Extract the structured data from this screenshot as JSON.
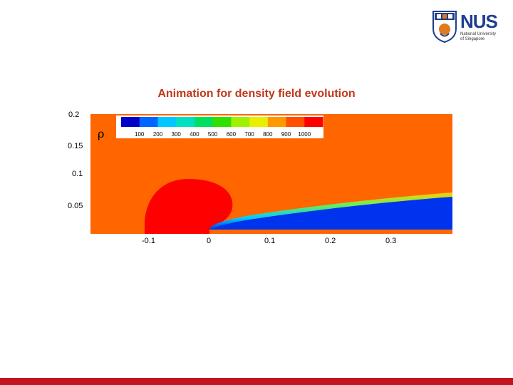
{
  "slide": {
    "title": "Animation for density field evolution"
  },
  "logo": {
    "wordmark": "NUS",
    "subtitle_line1": "National University",
    "subtitle_line2": "of Singapore",
    "primary_color": "#1f3f8c",
    "accent_color": "#e07a1f"
  },
  "colors": {
    "title": "#c0391b",
    "background_field": "#ff6600",
    "bubble": "#ff0000",
    "jet": "#0033ee",
    "footer_bar": "#c0151c"
  },
  "chart_data": {
    "type": "heatmap",
    "title": "Animation for density field evolution",
    "xlabel": "",
    "ylabel": "",
    "xlim": [
      -0.2,
      0.4
    ],
    "ylim": [
      0,
      0.2
    ],
    "x_ticks": [
      "-0.1",
      "0",
      "0.1",
      "0.2",
      "0.3"
    ],
    "x_tick_values": [
      -0.1,
      0,
      0.1,
      0.2,
      0.3
    ],
    "y_ticks": [
      "0.2",
      "0.15",
      "0.1",
      "0.05"
    ],
    "y_tick_values": [
      0.2,
      0.15,
      0.1,
      0.05
    ],
    "colorbar": {
      "symbol": "ρ",
      "labels": [
        "100",
        "200",
        "300",
        "400",
        "500",
        "600",
        "700",
        "800",
        "900",
        "1000"
      ],
      "colors": [
        "#0000c8",
        "#0066ff",
        "#00c8ff",
        "#00e0c0",
        "#00e060",
        "#30e000",
        "#a0f000",
        "#e8f000",
        "#ff9900",
        "#ff5000",
        "#ff0000"
      ]
    },
    "regions": [
      {
        "name": "ambient",
        "color": "#ff6600"
      },
      {
        "name": "bubble",
        "color": "#ff0000"
      },
      {
        "name": "jet",
        "color": "#0033ee"
      }
    ],
    "grid": false
  }
}
